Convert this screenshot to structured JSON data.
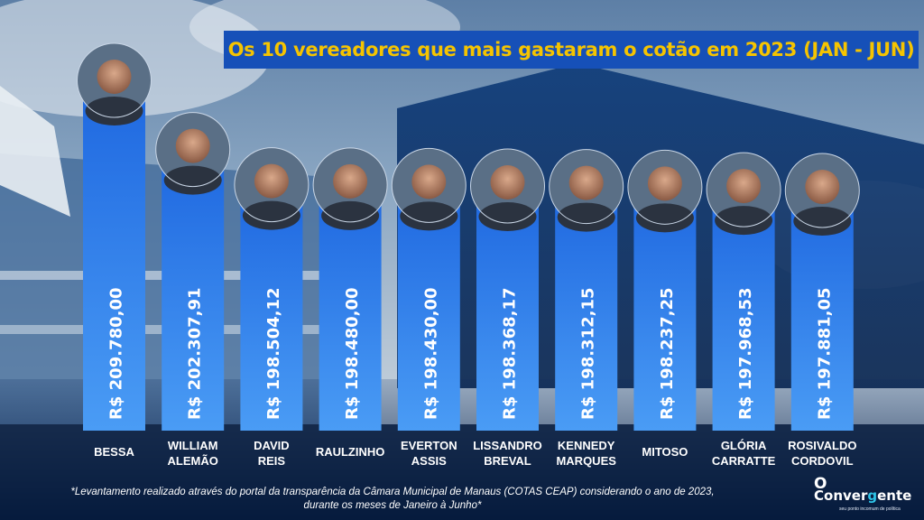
{
  "title": "Os 10 vereadores que mais gastaram o cotão em 2023 (JAN - JUN)",
  "footnote": {
    "line1": "*Levantamento realizado através do portal da transparência da Câmara Municipal de Manaus (COTAS CEAP) considerando o ano de 2023,",
    "line2": "durante os meses de Janeiro à Junho*"
  },
  "brand": {
    "o": "O",
    "name_pre": "Conver",
    "name_hl": "g",
    "name_post": "ente",
    "tagline": "seu ponto incomum de política"
  },
  "colors": {
    "title_bg": "#1650b8",
    "title_text": "#f5c400",
    "bar_top": "#1f68e0",
    "bar_bottom": "#4a9cf5",
    "background": "#0a2a5c"
  },
  "chart_data": {
    "type": "bar",
    "title": "Os 10 vereadores que mais gastaram o cotão em 2023 (JAN - JUN)",
    "xlabel": "",
    "ylabel": "",
    "categories": [
      [
        "BESSA"
      ],
      [
        "WILLIAM",
        "ALEMÃO"
      ],
      [
        "DAVID",
        "REIS"
      ],
      [
        "RAULZINHO"
      ],
      [
        "EVERTON",
        "ASSIS"
      ],
      [
        "LISSANDRO",
        "BREVAL"
      ],
      [
        "KENNEDY",
        "MARQUES"
      ],
      [
        "MITOSO"
      ],
      [
        "GLÓRIA",
        "CARRATTE"
      ],
      [
        "ROSIVALDO",
        "CORDOVIL"
      ]
    ],
    "values": [
      209780.0,
      202307.91,
      198504.12,
      198480.0,
      198430.0,
      198368.17,
      198312.15,
      198237.25,
      197968.53,
      197881.05
    ],
    "value_labels": [
      "R$ 209.780,00",
      "R$ 202.307,91",
      "R$ 198.504,12",
      "R$ 198.480,00",
      "R$ 198.430,00",
      "R$ 198.368,17",
      "R$ 198.312,15",
      "R$ 198.237,25",
      "R$ 197.968,53",
      "R$ 197.881,05"
    ],
    "grid": false,
    "legend": "none"
  }
}
